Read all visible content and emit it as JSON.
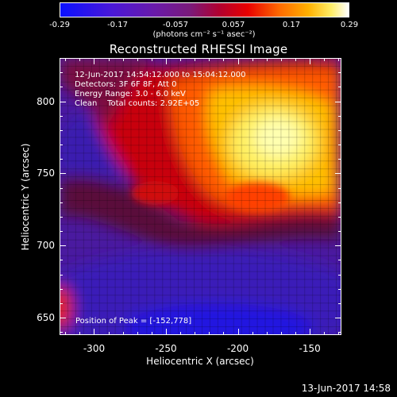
{
  "colorbar": {
    "tick_labels": [
      "-0.29",
      "-0.17",
      "-0.057",
      "0.057",
      "0.17",
      "0.29"
    ],
    "units_label": "(photons cm⁻² s⁻¹ asec⁻²)",
    "range": [
      -0.29,
      0.29
    ]
  },
  "title": "Reconstructed RHESSI Image",
  "info": {
    "time_range": "12-Jun-2017 14:54:12.000 to 15:04:12.000",
    "detectors": "Detectors: 3F 6F 8F, Att 0",
    "energy_range": "Energy Range: 3.0 - 6.0 keV",
    "algorithm_counts": "Clean    Total counts: 2.92E+05"
  },
  "peak_label": "Position of Peak = [-152,778]",
  "xaxis": {
    "label": "Heliocentric X (arcsec)",
    "tick_labels": [
      "-300",
      "-250",
      "-200",
      "-150"
    ],
    "ticks": [
      -300,
      -250,
      -200,
      -150
    ],
    "range": [
      -324,
      -128
    ]
  },
  "yaxis": {
    "label": "Heliocentric Y (arcsec)",
    "tick_labels": [
      "800",
      "750",
      "700",
      "650"
    ],
    "ticks": [
      800,
      750,
      700,
      650
    ],
    "range": [
      638,
      830
    ]
  },
  "timestamp": "13-Jun-2017 14:58",
  "colors": {
    "background": "#000000",
    "text": "#ffffff"
  }
}
